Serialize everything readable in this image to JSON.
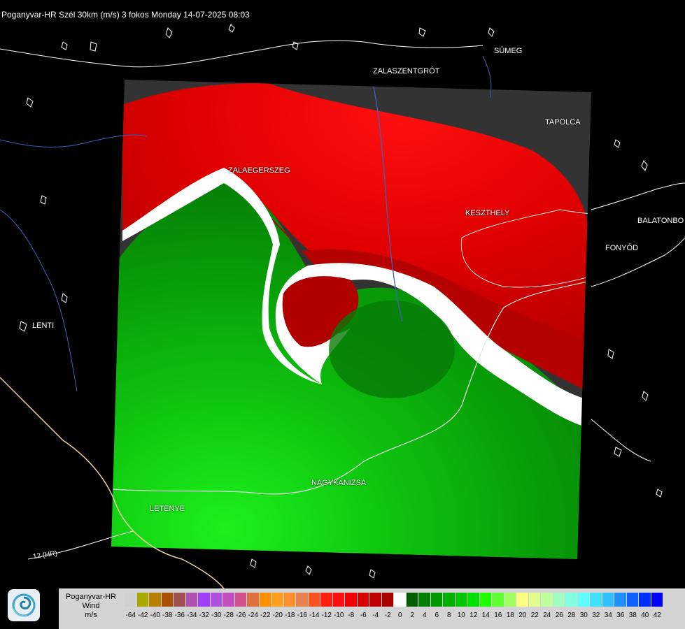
{
  "header": {
    "title": "Poganyvar-HR Szél 30km (m/s) 3 fokos Monday 14-07-2025 08:03"
  },
  "map": {
    "cities": [
      {
        "id": "sumeg",
        "name": "SÜMEG"
      },
      {
        "id": "zalaszentgrot",
        "name": "ZALASZENTGRÓT"
      },
      {
        "id": "tapolca",
        "name": "TAPOLCA"
      },
      {
        "id": "zalaegerszeg",
        "name": "ZALAEGERSZEG"
      },
      {
        "id": "keszthely",
        "name": "KESZTHELY"
      },
      {
        "id": "balatonboglar",
        "name": "BALATONBO"
      },
      {
        "id": "fonyod",
        "name": "FONYÓD"
      },
      {
        "id": "lenti",
        "name": "LENTI"
      },
      {
        "id": "nagykanizsa",
        "name": "NAGYKANIZSA"
      },
      {
        "id": "letenye",
        "name": "LETENYE"
      },
      {
        "id": "road-12hr",
        "name": "12 (HR)"
      }
    ],
    "colors": {
      "background": "#000000",
      "outside_radar": "#333333",
      "inbound_red": "#c80000",
      "outbound_green": "#00b000",
      "zero_white": "#ffffff"
    }
  },
  "legend": {
    "line1": "Poganyvar-HR",
    "line2": "Wind",
    "line3": "m/s",
    "bins": [
      {
        "label": "-64",
        "color": "#d0d0d0"
      },
      {
        "label": "-42",
        "color": "#a8a800"
      },
      {
        "label": "-40",
        "color": "#b88000"
      },
      {
        "label": "-38",
        "color": "#a85000"
      },
      {
        "label": "-36",
        "color": "#a05050"
      },
      {
        "label": "-34",
        "color": "#b050b0"
      },
      {
        "label": "-32",
        "color": "#a040ff"
      },
      {
        "label": "-30",
        "color": "#b050e0"
      },
      {
        "label": "-28",
        "color": "#c050c0"
      },
      {
        "label": "-26",
        "color": "#d05090"
      },
      {
        "label": "-24",
        "color": "#e07040"
      },
      {
        "label": "-22",
        "color": "#ff9000"
      },
      {
        "label": "-20",
        "color": "#ffa020"
      },
      {
        "label": "-18",
        "color": "#ff9030"
      },
      {
        "label": "-16",
        "color": "#e88050"
      },
      {
        "label": "-14",
        "color": "#ff5020"
      },
      {
        "label": "-12",
        "color": "#ff2010"
      },
      {
        "label": "-10",
        "color": "#ff1010"
      },
      {
        "label": "-8",
        "color": "#f00000"
      },
      {
        "label": "-6",
        "color": "#d80000"
      },
      {
        "label": "-4",
        "color": "#c00000"
      },
      {
        "label": "-2",
        "color": "#a80000"
      },
      {
        "label": "0",
        "color": "#ffffff"
      },
      {
        "label": "2",
        "color": "#006000"
      },
      {
        "label": "4",
        "color": "#008000"
      },
      {
        "label": "6",
        "color": "#009800"
      },
      {
        "label": "8",
        "color": "#00b000"
      },
      {
        "label": "10",
        "color": "#00c800"
      },
      {
        "label": "12",
        "color": "#00e000"
      },
      {
        "label": "14",
        "color": "#20ff00"
      },
      {
        "label": "16",
        "color": "#60ff30"
      },
      {
        "label": "18",
        "color": "#a0ff60"
      },
      {
        "label": "20",
        "color": "#ffff80"
      },
      {
        "label": "22",
        "color": "#e0ff90"
      },
      {
        "label": "24",
        "color": "#c0ffa0"
      },
      {
        "label": "26",
        "color": "#a0ffc0"
      },
      {
        "label": "28",
        "color": "#80ffe0"
      },
      {
        "label": "30",
        "color": "#60ffff"
      },
      {
        "label": "32",
        "color": "#40e0ff"
      },
      {
        "label": "34",
        "color": "#30c0ff"
      },
      {
        "label": "36",
        "color": "#2090ff"
      },
      {
        "label": "38",
        "color": "#1060ff"
      },
      {
        "label": "40",
        "color": "#0030ff"
      },
      {
        "label": "42",
        "color": "#0000ff"
      }
    ],
    "logo_icon": "swirl-logo-icon"
  }
}
